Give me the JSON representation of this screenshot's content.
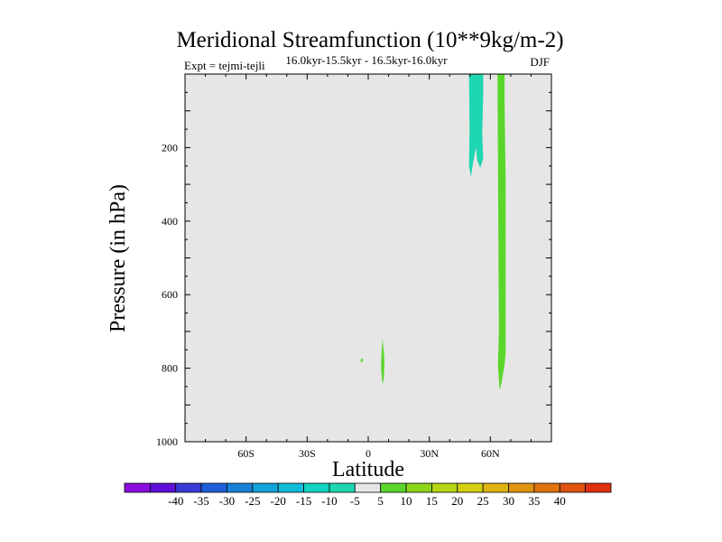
{
  "chart_data": {
    "type": "heatmap",
    "title": "Meridional Streamfunction (10**9kg/m-2)",
    "subtitle_left": "Expt = tejmi-tejli",
    "subtitle_center": "16.0kyr-15.5kyr - 16.5kyr-16.0kyr",
    "subtitle_right": "DJF",
    "xlabel": "Latitude",
    "ylabel": "Pressure (in hPa)",
    "xlim": [
      -90,
      90
    ],
    "ylim": [
      1000,
      0
    ],
    "x_ticks": [
      {
        "value": -60,
        "label": "60S"
      },
      {
        "value": -30,
        "label": "30S"
      },
      {
        "value": 0,
        "label": "0"
      },
      {
        "value": 30,
        "label": "30N"
      },
      {
        "value": 60,
        "label": "60N"
      }
    ],
    "y_ticks": [
      {
        "value": 200,
        "label": "200"
      },
      {
        "value": 400,
        "label": "400"
      },
      {
        "value": 600,
        "label": "600"
      },
      {
        "value": 800,
        "label": "800"
      },
      {
        "value": 1000,
        "label": "1000"
      }
    ],
    "background_color": "#e6e6e6",
    "features": [
      {
        "name": "negative-cell-high-latitude",
        "level_range": [
          -10,
          -5
        ],
        "color": "#1ed6b0",
        "outline": [
          [
            49.5,
            0
          ],
          [
            56.5,
            0
          ],
          [
            56.5,
            60
          ],
          [
            56,
            160
          ],
          [
            56.5,
            230
          ],
          [
            55,
            255
          ],
          [
            53.5,
            235
          ],
          [
            53,
            200
          ],
          [
            51.5,
            240
          ],
          [
            50.5,
            280
          ],
          [
            49.5,
            250
          ],
          [
            49.8,
            150
          ]
        ]
      },
      {
        "name": "positive-cell-high-latitude",
        "level_range": [
          5,
          10
        ],
        "color": "#5ad62a",
        "outline": [
          [
            63.5,
            0
          ],
          [
            67,
            0
          ],
          [
            67,
            80
          ],
          [
            67.5,
            300
          ],
          [
            67.5,
            760
          ],
          [
            67,
            790
          ],
          [
            65.5,
            840
          ],
          [
            64.5,
            860
          ],
          [
            63.7,
            790
          ],
          [
            64.2,
            700
          ],
          [
            63.8,
            300
          ]
        ]
      },
      {
        "name": "positive-cell-equator",
        "level_range": [
          5,
          10
        ],
        "color": "#5ad62a",
        "outline": [
          [
            7,
            720
          ],
          [
            7.8,
            765
          ],
          [
            8,
            790
          ],
          [
            7.6,
            830
          ],
          [
            7,
            845
          ],
          [
            6.3,
            800
          ],
          [
            6.5,
            760
          ]
        ]
      },
      {
        "name": "positive-speck-equator",
        "level_range": [
          5,
          10
        ],
        "color": "#5ad62a",
        "outline": [
          [
            -3.2,
            772
          ],
          [
            -2.5,
            778
          ],
          [
            -3.2,
            786
          ],
          [
            -3.8,
            778
          ]
        ]
      }
    ],
    "colorbar": {
      "colors": [
        "#8a0fe0",
        "#6010d8",
        "#3a3ad8",
        "#1f60d8",
        "#1880d8",
        "#10a4d8",
        "#10bcd8",
        "#10d4c4",
        "#1ed6b0",
        "#e6e6e6",
        "#5ad62a",
        "#8cd61a",
        "#b4d614",
        "#d4d010",
        "#e0b410",
        "#e09410",
        "#e07410",
        "#e05410",
        "#e03010"
      ],
      "labels": [
        "-40",
        "-35",
        "-30",
        "-25",
        "-20",
        "-15",
        "-10",
        "-5",
        "5",
        "10",
        "15",
        "20",
        "25",
        "30",
        "35",
        "40"
      ]
    }
  }
}
